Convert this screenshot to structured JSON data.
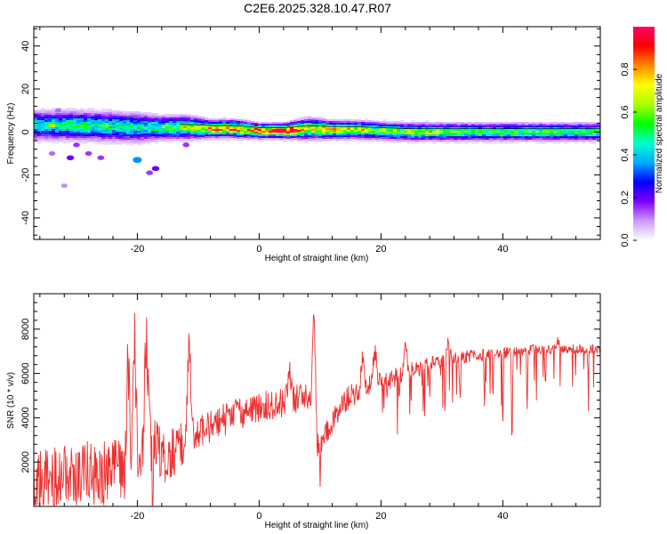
{
  "title": "C2E6.2025.328.10.47.R07",
  "chart_data": [
    {
      "type": "heatmap",
      "xlabel": "Height of straight line (km)",
      "ylabel": "Frequency (Hz)",
      "xlim": [
        -37,
        56
      ],
      "ylim": [
        -50,
        49
      ],
      "xticks": [
        -20,
        0,
        20,
        40
      ],
      "yticks": [
        -40,
        -20,
        0,
        20,
        40
      ],
      "colorbar": {
        "label": "Normalized spectral amplitude",
        "range": [
          0,
          1
        ],
        "ticks": [
          "0.0",
          "0.2",
          "0.4",
          "0.6",
          "0.8"
        ],
        "tick_values": [
          0.0,
          0.2,
          0.4,
          0.6,
          0.8
        ],
        "colors": [
          "#ffffff",
          "#cc99ff",
          "#7f00ff",
          "#0000ff",
          "#00aaff",
          "#00ffcc",
          "#00ff00",
          "#aaff00",
          "#ffff00",
          "#ff8800",
          "#ff0000",
          "#ff0066"
        ]
      },
      "band": [
        {
          "h": -36,
          "center": 3,
          "half_width": 5,
          "amp": 0.45
        },
        {
          "h": -30,
          "center": 3,
          "half_width": 5,
          "amp": 0.5
        },
        {
          "h": -24,
          "center": 2.5,
          "half_width": 5,
          "amp": 0.5
        },
        {
          "h": -20,
          "center": 2,
          "half_width": 5,
          "amp": 0.45
        },
        {
          "h": -16,
          "center": 2,
          "half_width": 4,
          "amp": 0.55
        },
        {
          "h": -12,
          "center": 2,
          "half_width": 4,
          "amp": 0.6
        },
        {
          "h": -8,
          "center": 1.5,
          "half_width": 3,
          "amp": 0.75
        },
        {
          "h": -4,
          "center": 1.5,
          "half_width": 3,
          "amp": 0.8
        },
        {
          "h": 0,
          "center": 0.5,
          "half_width": 2.5,
          "amp": 0.9
        },
        {
          "h": 4,
          "center": 0.5,
          "half_width": 2.5,
          "amp": 0.95
        },
        {
          "h": 8,
          "center": 1.5,
          "half_width": 3.5,
          "amp": 0.75
        },
        {
          "h": 12,
          "center": 1,
          "half_width": 3,
          "amp": 0.75
        },
        {
          "h": 16,
          "center": 1,
          "half_width": 3,
          "amp": 0.7
        },
        {
          "h": 20,
          "center": 0.5,
          "half_width": 3,
          "amp": 0.6
        },
        {
          "h": 25,
          "center": 0,
          "half_width": 3,
          "amp": 0.62
        },
        {
          "h": 30,
          "center": 0,
          "half_width": 3,
          "amp": 0.6
        },
        {
          "h": 35,
          "center": 0,
          "half_width": 3,
          "amp": 0.55
        },
        {
          "h": 40,
          "center": 0,
          "half_width": 3,
          "amp": 0.55
        },
        {
          "h": 45,
          "center": 0,
          "half_width": 3,
          "amp": 0.55
        },
        {
          "h": 50,
          "center": 0,
          "half_width": 3,
          "amp": 0.55
        },
        {
          "h": 56,
          "center": 0,
          "half_width": 3,
          "amp": 0.55
        }
      ],
      "hotspots": [
        {
          "h": -34,
          "f": 3,
          "amp": 0.75
        },
        {
          "h": -25,
          "f": 3,
          "amp": 0.7
        },
        {
          "h": -12,
          "f": 2,
          "amp": 0.85
        },
        {
          "h": -7,
          "f": 1,
          "amp": 0.9
        },
        {
          "h": -4,
          "f": 1,
          "amp": 0.9
        },
        {
          "h": 2,
          "f": 0,
          "amp": 1.0
        },
        {
          "h": 5,
          "f": 0,
          "amp": 1.0
        },
        {
          "h": 8.5,
          "f": 2,
          "amp": 0.85
        },
        {
          "h": 11,
          "f": 1,
          "amp": 0.9
        },
        {
          "h": 13,
          "f": 1,
          "amp": 0.85
        },
        {
          "h": 17,
          "f": 1,
          "amp": 0.85
        },
        {
          "h": 25,
          "f": 0,
          "amp": 0.8
        },
        {
          "h": 28,
          "f": 0,
          "amp": 0.85
        }
      ],
      "speckles": [
        {
          "h": -31,
          "f": -12,
          "amp": 0.2
        },
        {
          "h": -28,
          "f": -10,
          "amp": 0.15
        },
        {
          "h": -26,
          "f": -12,
          "amp": 0.15
        },
        {
          "h": -20,
          "f": -13,
          "amp": 0.35
        },
        {
          "h": -17,
          "f": -17,
          "amp": 0.2
        },
        {
          "h": -18,
          "f": -19,
          "amp": 0.15
        },
        {
          "h": -34,
          "f": -10,
          "amp": 0.12
        },
        {
          "h": -30,
          "f": -6,
          "amp": 0.15
        },
        {
          "h": -12,
          "f": -6,
          "amp": 0.15
        },
        {
          "h": -33,
          "f": 10,
          "amp": 0.12
        },
        {
          "h": -32,
          "f": -25,
          "amp": 0.1
        }
      ]
    },
    {
      "type": "line",
      "xlabel": "Height of straight line (km)",
      "ylabel": "SNR (10 * v/v)",
      "xlim": [
        -37,
        56
      ],
      "ylim": [
        0,
        9600
      ],
      "xticks": [
        -20,
        0,
        20,
        40
      ],
      "yticks": [
        2000,
        4000,
        6000,
        8000
      ],
      "color": "#ee3030",
      "baseline": {
        "x": [
          -37,
          -30,
          -22,
          -19,
          -15,
          -12,
          -9,
          -5,
          0,
          4,
          8,
          9.5,
          11,
          14,
          18,
          22,
          26,
          30,
          35,
          40,
          46,
          50,
          56
        ],
        "y": [
          1200,
          1400,
          1600,
          3000,
          2200,
          3000,
          3400,
          4000,
          4500,
          4700,
          5000,
          2500,
          3400,
          4800,
          5400,
          5800,
          6200,
          6600,
          6800,
          6900,
          7100,
          7100,
          7100
        ]
      },
      "spikes": [
        {
          "x": -21.5,
          "y": 7300
        },
        {
          "x": -20.5,
          "y": 7800
        },
        {
          "x": -18.5,
          "y": 8300
        },
        {
          "x": -11.5,
          "y": 7900
        },
        {
          "x": 9,
          "y": 9400
        },
        {
          "x": 5,
          "y": 6200
        },
        {
          "x": 17,
          "y": 7200
        },
        {
          "x": 19,
          "y": 7400
        },
        {
          "x": 24,
          "y": 7300
        },
        {
          "x": 31,
          "y": 7500
        },
        {
          "x": 49,
          "y": 7500
        }
      ],
      "dips": [
        {
          "x": -17.5,
          "y": 200
        },
        {
          "x": 10,
          "y": 1300
        },
        {
          "x": 23,
          "y": 4700
        },
        {
          "x": 28,
          "y": 5200
        },
        {
          "x": 30.5,
          "y": 4100
        },
        {
          "x": 33,
          "y": 4900
        },
        {
          "x": 37,
          "y": 4600
        },
        {
          "x": 40,
          "y": 3800
        },
        {
          "x": 41.5,
          "y": 3000
        },
        {
          "x": 44,
          "y": 4600
        },
        {
          "x": 47,
          "y": 5600
        },
        {
          "x": 54,
          "y": 6000
        }
      ],
      "noise_amplitude": [
        {
          "x": -37,
          "a": 1400
        },
        {
          "x": -20,
          "a": 1600
        },
        {
          "x": -10,
          "a": 800
        },
        {
          "x": 0,
          "a": 700
        },
        {
          "x": 20,
          "a": 500
        },
        {
          "x": 30,
          "a": 300
        },
        {
          "x": 56,
          "a": 200
        }
      ]
    }
  ]
}
